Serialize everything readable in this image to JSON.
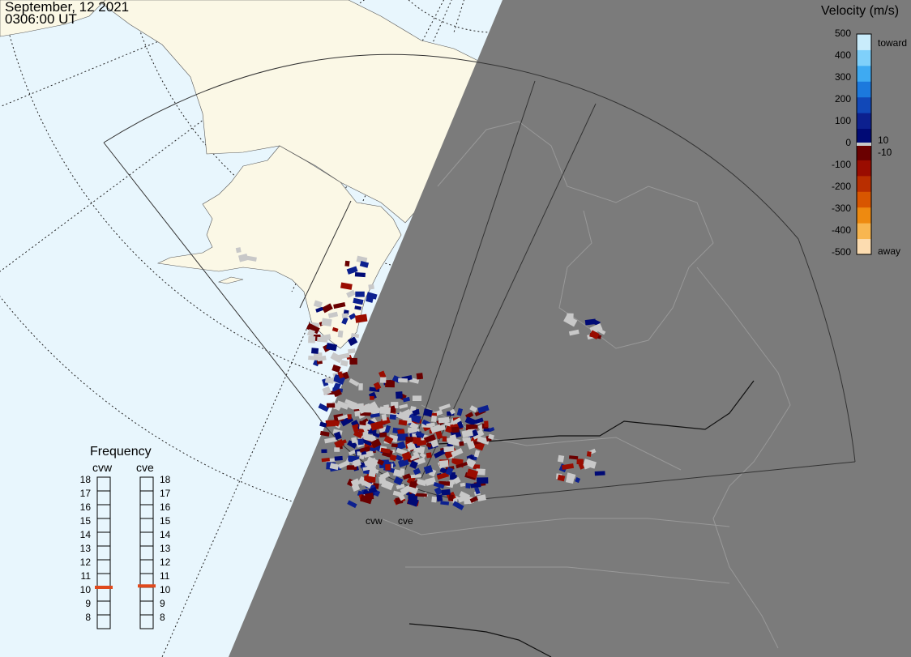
{
  "header": {
    "date": "September, 12 2021",
    "time": "0306:00 UT"
  },
  "legend": {
    "title": "Velocity (m/s)",
    "ticks": [
      "500",
      "400",
      "300",
      "200",
      "100",
      "0",
      "-100",
      "-200",
      "-300",
      "-400",
      "-500"
    ],
    "toward_label": "toward",
    "away_label": "away",
    "threshold_pos": "10",
    "threshold_neg": "-10",
    "colors": [
      "#c9ecfb",
      "#7fd0fa",
      "#3eaaf2",
      "#1c79dd",
      "#1148b8",
      "#0c208f",
      "#000a75",
      "#6a0000",
      "#9a0c00",
      "#b92e00",
      "#d85600",
      "#ee8a10",
      "#f8b650",
      "#fcdcb0"
    ]
  },
  "frequency": {
    "title": "Frequency",
    "radars": [
      {
        "name": "cvw",
        "value": 10.5
      },
      {
        "name": "cve",
        "value": 10.6
      }
    ],
    "ticks": [
      "18",
      "17",
      "16",
      "15",
      "14",
      "13",
      "12",
      "11",
      "10",
      "9",
      "8"
    ],
    "marker_color": "#e0491c"
  },
  "radar_labels": [
    "cvw",
    "cve"
  ],
  "map_colors": {
    "ocean": "#e8f6fd",
    "land": "#fbf8e6",
    "night": "#7b7b7b",
    "lowvel": "#c8c8c8"
  }
}
